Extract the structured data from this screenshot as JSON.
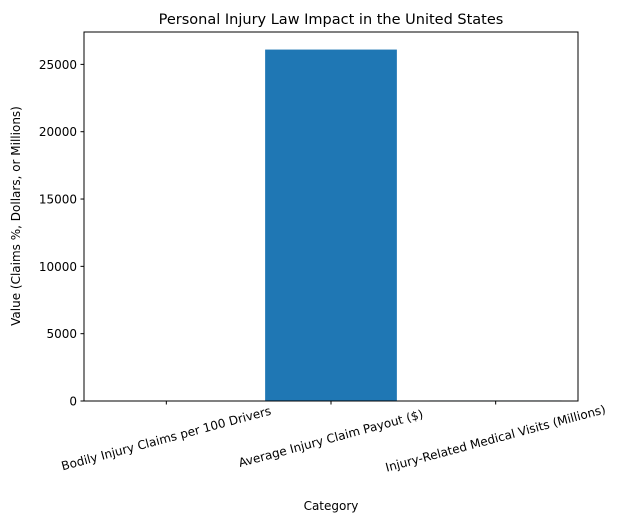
{
  "chart_data": {
    "type": "bar",
    "title": "Personal Injury Law Impact in the United States",
    "xlabel": "Category",
    "ylabel": "Value (Claims %, Dollars, or Millions)",
    "categories": [
      "Bodily Injury Claims per 100 Drivers",
      "Average Injury Claim Payout ($)",
      "Injury-Related Medical Visits (Millions)"
    ],
    "values": [
      1.1,
      26100,
      40
    ],
    "ylim": [
      0,
      27405
    ],
    "yticks": [
      0,
      5000,
      10000,
      15000,
      20000,
      25000
    ],
    "xtick_rotation_deg": 15,
    "grid": false,
    "legend": "none",
    "bar_color": "#1f77b4"
  }
}
